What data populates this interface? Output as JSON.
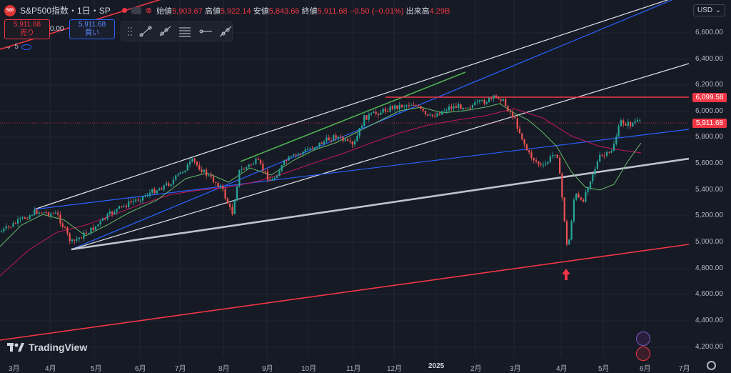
{
  "header": {
    "symbol": "S&P500指数・1日・SP",
    "logo": "500",
    "ohlc": [
      {
        "label": "始値",
        "value": "5,903.67"
      },
      {
        "label": "高値",
        "value": "5,922.14"
      },
      {
        "label": "安値",
        "value": "5,843.66"
      },
      {
        "label": "終値",
        "value": "5,911.68"
      }
    ],
    "change": "−0.50 (−0.01%)",
    "volume_label": "出来高",
    "volume": "4.29B"
  },
  "trade": {
    "sell_price": "5,911.68",
    "sell_label": "売り",
    "spread": "0.00",
    "buy_price": "5,911.68",
    "buy_label": "買い"
  },
  "indicators": {
    "count": "5"
  },
  "currency": "USD",
  "price_axis": [
    "6,600.00",
    "6,400.00",
    "6,200.00",
    "6,000.00",
    "5,800.00",
    "5,600.00",
    "5,400.00",
    "5,200.00",
    "5,000.00",
    "4,800.00",
    "4,600.00",
    "4,400.00",
    "4,200.00"
  ],
  "tags": {
    "resistance": "6,099.58",
    "last": "5,911.68"
  },
  "time_axis": [
    "3月",
    "4月",
    "5月",
    "6月",
    "7月",
    "8月",
    "9月",
    "10月",
    "11月",
    "12月",
    "2025",
    "2月",
    "3月",
    "4月",
    "5月",
    "6月",
    "7月"
  ],
  "brand": "TradingView",
  "colors": {
    "background": "#161a25",
    "up": "#26a69a",
    "down": "#ef5350",
    "accent": "#2962ff",
    "red": "#f23645"
  },
  "drawing_tools": [
    "trend-line-icon",
    "ray-icon",
    "fib-retracement-icon",
    "horizontal-ray-icon",
    "extended-line-icon"
  ]
}
